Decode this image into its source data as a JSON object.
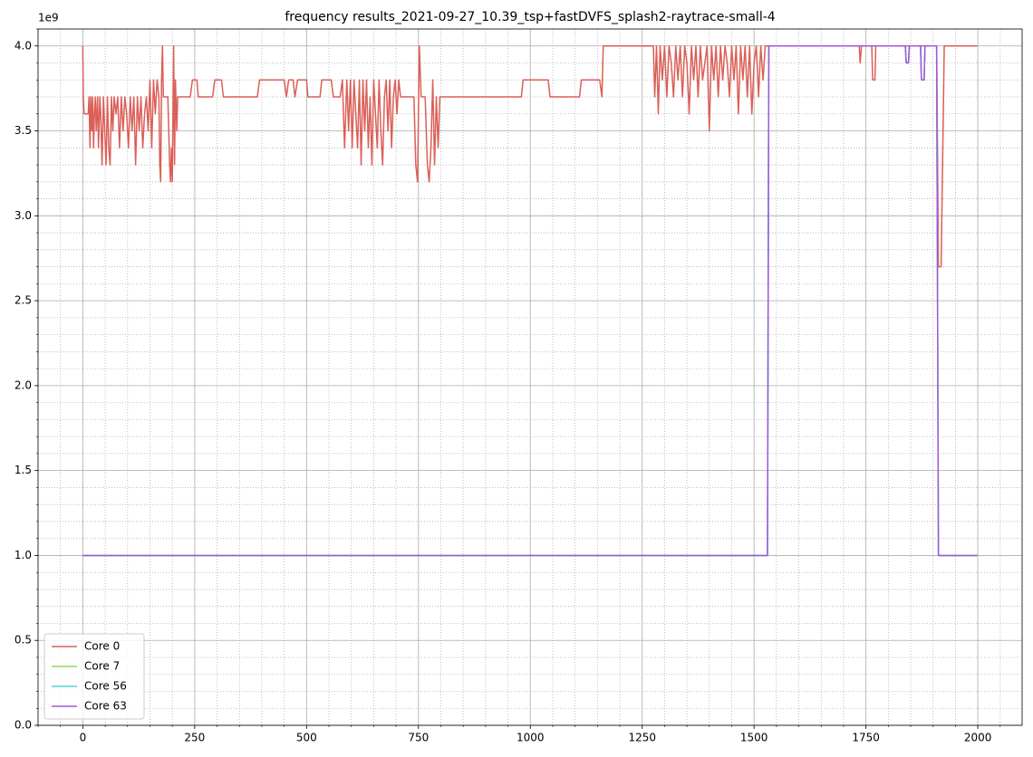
{
  "chart_data": {
    "type": "line",
    "title": "frequency results_2021-09-27_10.39_tsp+fastDVFS_splash2-raytrace-small-4",
    "y_offset_label": "1e9",
    "xlim": [
      -100,
      2099
    ],
    "ylim": [
      0,
      4.1
    ],
    "xticks": [
      0,
      250,
      500,
      750,
      1000,
      1250,
      1500,
      1750,
      2000
    ],
    "yticks": [
      {
        "value": 0,
        "label": "0.0"
      },
      0.5,
      {
        "value": 1,
        "label": "1.0"
      },
      1.5,
      {
        "value": 2,
        "label": "2.0"
      },
      2.5,
      {
        "value": 3,
        "label": "3.0"
      },
      3.5,
      {
        "value": 4,
        "label": "4.0"
      }
    ],
    "grid": true,
    "minor_grid": true,
    "minor_divisions": 5,
    "legend": "lower left",
    "series": [
      {
        "name": "Core 0",
        "color": "#db5f57",
        "x": [
          0,
          1,
          3,
          12,
          14,
          16,
          18,
          20,
          22,
          24,
          26,
          28,
          30,
          33,
          35,
          38,
          40,
          43,
          46,
          49,
          52,
          55,
          58,
          61,
          64,
          67,
          70,
          74,
          78,
          82,
          86,
          90,
          94,
          98,
          102,
          106,
          110,
          114,
          118,
          122,
          126,
          130,
          134,
          138,
          142,
          146,
          150,
          154,
          158,
          162,
          166,
          170,
          172,
          174,
          176,
          178,
          180,
          185,
          190,
          194,
          196,
          198,
          200,
          203,
          205,
          207,
          210,
          212,
          240,
          245,
          255,
          258,
          290,
          295,
          310,
          314,
          390,
          395,
          450,
          455,
          460,
          470,
          474,
          480,
          500,
          503,
          530,
          534,
          555,
          560,
          575,
          580,
          585,
          590,
          594,
          598,
          602,
          606,
          610,
          614,
          618,
          622,
          626,
          630,
          634,
          638,
          642,
          646,
          650,
          654,
          658,
          662,
          666,
          670,
          674,
          678,
          682,
          686,
          690,
          694,
          698,
          702,
          706,
          710,
          740,
          744,
          748,
          752,
          756,
          765,
          770,
          774,
          778,
          782,
          786,
          790,
          794,
          798,
          980,
          984,
          1040,
          1044,
          1110,
          1114,
          1155,
          1160,
          1163,
          1275,
          1278,
          1282,
          1286,
          1290,
          1295,
          1300,
          1305,
          1310,
          1315,
          1320,
          1325,
          1330,
          1335,
          1340,
          1345,
          1350,
          1355,
          1360,
          1365,
          1370,
          1375,
          1380,
          1385,
          1390,
          1395,
          1400,
          1405,
          1410,
          1415,
          1420,
          1425,
          1430,
          1435,
          1440,
          1445,
          1450,
          1455,
          1460,
          1465,
          1470,
          1475,
          1480,
          1485,
          1490,
          1495,
          1500,
          1505,
          1510,
          1515,
          1520,
          1525,
          1735,
          1737,
          1740,
          1763,
          1765,
          1770,
          1772,
          1908,
          1912,
          1918,
          1925,
          1999
        ],
        "values": [
          4.0,
          3.7,
          3.6,
          3.6,
          3.7,
          3.4,
          3.7,
          3.5,
          3.7,
          3.4,
          3.6,
          3.7,
          3.5,
          3.7,
          3.4,
          3.7,
          3.6,
          3.3,
          3.7,
          3.5,
          3.3,
          3.7,
          3.4,
          3.3,
          3.7,
          3.5,
          3.7,
          3.6,
          3.7,
          3.4,
          3.7,
          3.5,
          3.7,
          3.6,
          3.4,
          3.7,
          3.5,
          3.7,
          3.3,
          3.7,
          3.5,
          3.7,
          3.4,
          3.6,
          3.7,
          3.5,
          3.8,
          3.4,
          3.8,
          3.6,
          3.8,
          3.7,
          3.3,
          3.2,
          3.8,
          4.0,
          3.7,
          3.7,
          3.7,
          3.3,
          3.2,
          3.4,
          3.2,
          4.0,
          3.3,
          3.8,
          3.5,
          3.7,
          3.7,
          3.8,
          3.8,
          3.7,
          3.7,
          3.8,
          3.8,
          3.7,
          3.7,
          3.8,
          3.8,
          3.7,
          3.8,
          3.8,
          3.7,
          3.8,
          3.8,
          3.7,
          3.7,
          3.8,
          3.8,
          3.7,
          3.7,
          3.8,
          3.4,
          3.8,
          3.5,
          3.8,
          3.4,
          3.8,
          3.6,
          3.4,
          3.8,
          3.3,
          3.8,
          3.5,
          3.8,
          3.4,
          3.7,
          3.3,
          3.8,
          3.6,
          3.4,
          3.8,
          3.5,
          3.3,
          3.7,
          3.8,
          3.5,
          3.8,
          3.4,
          3.7,
          3.8,
          3.6,
          3.8,
          3.7,
          3.7,
          3.3,
          3.2,
          4.0,
          3.7,
          3.7,
          3.3,
          3.2,
          3.4,
          3.8,
          3.3,
          3.7,
          3.4,
          3.7,
          3.7,
          3.8,
          3.8,
          3.7,
          3.7,
          3.8,
          3.8,
          3.7,
          4.0,
          4.0,
          3.7,
          4.0,
          3.6,
          4.0,
          3.8,
          4.0,
          3.7,
          4.0,
          3.9,
          3.7,
          4.0,
          3.8,
          4.0,
          3.7,
          4.0,
          3.9,
          3.6,
          4.0,
          3.8,
          4.0,
          3.7,
          4.0,
          3.8,
          3.9,
          4.0,
          3.5,
          4.0,
          3.8,
          4.0,
          3.7,
          4.0,
          3.8,
          4.0,
          3.9,
          3.7,
          4.0,
          3.8,
          4.0,
          3.6,
          4.0,
          3.8,
          4.0,
          3.7,
          4.0,
          3.6,
          3.9,
          4.0,
          3.7,
          4.0,
          3.8,
          4.0,
          4.0,
          3.9,
          4.0,
          4.0,
          3.8,
          3.8,
          4.0,
          4.0,
          2.7,
          2.7,
          4.0,
          4.0
        ]
      },
      {
        "name": "Core 7",
        "color": "#91db57",
        "x": [
          0,
          1530,
          1533,
          1838,
          1840,
          1845,
          1847,
          1872,
          1874,
          1880,
          1882,
          1908,
          1912,
          1999
        ],
        "values": [
          1,
          1,
          4,
          4,
          3.9,
          3.9,
          4,
          4,
          3.8,
          3.8,
          4,
          4,
          1,
          1
        ]
      },
      {
        "name": "Core 56",
        "color": "#57d3db",
        "x": [
          0,
          1530,
          1533,
          1838,
          1840,
          1845,
          1847,
          1872,
          1874,
          1880,
          1882,
          1908,
          1912,
          1999
        ],
        "values": [
          1,
          1,
          4,
          4,
          3.9,
          3.9,
          4,
          4,
          3.8,
          3.8,
          4,
          4,
          1,
          1
        ]
      },
      {
        "name": "Core 63",
        "color": "#a157db",
        "x": [
          0,
          1530,
          1533,
          1838,
          1840,
          1845,
          1847,
          1872,
          1874,
          1880,
          1882,
          1908,
          1912,
          1999
        ],
        "values": [
          1,
          1,
          4,
          4,
          3.9,
          3.9,
          4,
          4,
          3.8,
          3.8,
          4,
          4,
          1,
          1
        ]
      }
    ]
  }
}
